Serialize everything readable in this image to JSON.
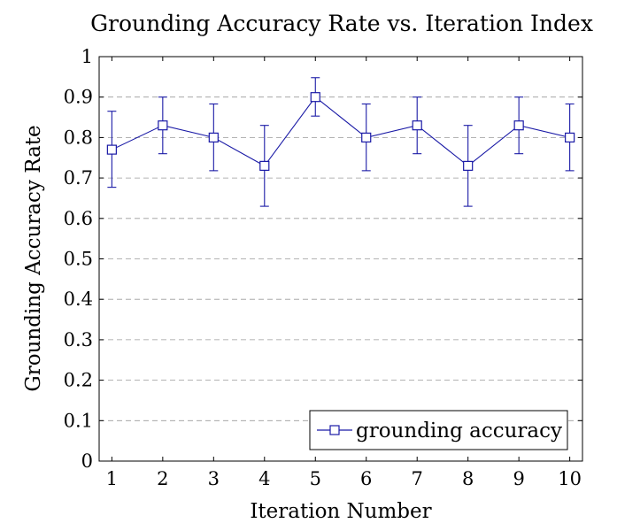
{
  "chart_data": {
    "type": "line",
    "title": "Grounding Accuracy Rate vs. Iteration Index",
    "xlabel": "Iteration Number",
    "ylabel": "Grounding Accuracy Rate",
    "x": [
      1,
      2,
      3,
      4,
      5,
      6,
      7,
      8,
      9,
      10
    ],
    "xlim": [
      0.75,
      10.25
    ],
    "ylim": [
      0,
      1
    ],
    "xticks": [
      "1",
      "2",
      "3",
      "4",
      "5",
      "6",
      "7",
      "8",
      "9",
      "10"
    ],
    "yticks": [
      "0",
      "0.1",
      "0.2",
      "0.3",
      "0.4",
      "0.5",
      "0.6",
      "0.7",
      "0.8",
      "0.9",
      "1"
    ],
    "ytick_values": [
      0,
      0.1,
      0.2,
      0.3,
      0.4,
      0.5,
      0.6,
      0.7,
      0.8,
      0.9,
      1
    ],
    "grid": "horizontal-dashed",
    "legend_position": "bottom-right",
    "series": [
      {
        "name": "grounding accuracy",
        "color": "#1a1aa6",
        "marker": "square",
        "values": [
          0.77,
          0.83,
          0.8,
          0.73,
          0.9,
          0.8,
          0.83,
          0.73,
          0.83,
          0.8
        ],
        "error_upper": [
          0.865,
          0.9,
          0.883,
          0.83,
          0.948,
          0.883,
          0.9,
          0.83,
          0.9,
          0.883
        ],
        "error_lower": [
          0.677,
          0.76,
          0.718,
          0.63,
          0.853,
          0.718,
          0.76,
          0.63,
          0.76,
          0.718
        ]
      }
    ]
  }
}
